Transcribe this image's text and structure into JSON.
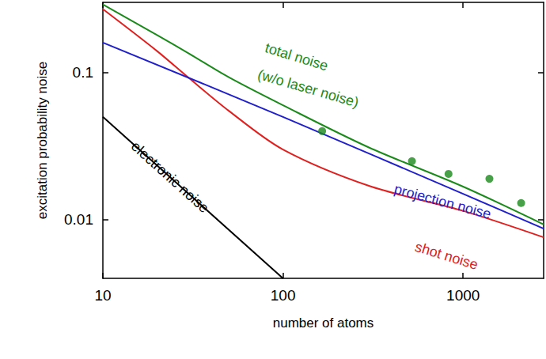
{
  "chart_data": {
    "type": "line",
    "x_label": "number of atoms",
    "y_label": "excitation probability noise",
    "log": true,
    "grid": false,
    "xlim": [
      10,
      2800
    ],
    "ylim": [
      0.004,
      0.3
    ],
    "xticks": [
      10,
      100,
      1000
    ],
    "yticks": [
      0.01,
      0.1
    ],
    "series": [
      {
        "type": "line",
        "color": "#000000",
        "line_style": "solid",
        "x": [
          10,
          100
        ],
        "values": [
          0.05,
          0.004
        ]
      },
      {
        "type": "line",
        "color": "#e0201f",
        "line_style": "solid",
        "x": [
          10,
          20,
          30,
          50,
          100,
          300,
          1000,
          2800
        ],
        "values": [
          0.27,
          0.14,
          0.092,
          0.055,
          0.03,
          0.017,
          0.0115,
          0.0076
        ]
      },
      {
        "type": "line",
        "color": "#1f1fcc",
        "line_style": "solid",
        "x": [
          10,
          100,
          1000,
          2800
        ],
        "values": [
          0.16,
          0.05,
          0.015,
          0.0087
        ]
      },
      {
        "type": "line",
        "color": "#1a8a1a",
        "line_style": "solid",
        "x": [
          10,
          20,
          30,
          50,
          100,
          300,
          1000,
          2800
        ],
        "values": [
          0.29,
          0.18,
          0.135,
          0.093,
          0.06,
          0.031,
          0.0168,
          0.0093
        ]
      },
      {
        "type": "scatter",
        "color": "#1a8a1a",
        "marker": "circle",
        "x": [
          165,
          520,
          830,
          1400,
          2100
        ],
        "values": [
          0.04,
          0.025,
          0.0205,
          0.019,
          0.013
        ]
      }
    ],
    "annotations": [
      {
        "text": "total noise",
        "x": 119,
        "y": 0.128,
        "color": "#1a8a1a"
      },
      {
        "text": "(w/o laser noise)",
        "x": 138,
        "y": 0.078,
        "color": "#1a8a1a"
      },
      {
        "text": "projection noise",
        "x": 770,
        "y": 0.0133,
        "color": "#1f1fcc"
      },
      {
        "text": "shot noise",
        "x": 809,
        "y": 0.0057,
        "color": "#e0201f"
      },
      {
        "text": "electronic noise",
        "x": 23.6,
        "y": 0.0195,
        "color": "#000000"
      }
    ]
  }
}
